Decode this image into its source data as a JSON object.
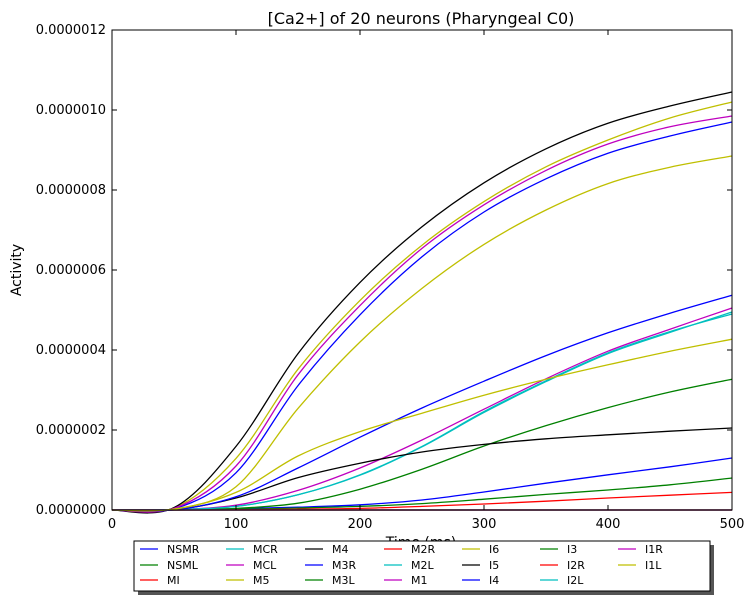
{
  "chart_data": {
    "type": "line",
    "title": "[Ca2+] of 20 neurons (Pharyngeal C0)",
    "xlabel": "Time (ms)",
    "ylabel": "Activity",
    "xlim": [
      0,
      500
    ],
    "ylim": [
      0,
      1.2e-06
    ],
    "xticks": [
      "0",
      "100",
      "200",
      "300",
      "400",
      "500"
    ],
    "yticks": [
      "0.0000000",
      "0.0000002",
      "0.0000004",
      "0.0000006",
      "0.0000008",
      "0.0000010",
      "0.0000012"
    ],
    "grid": false,
    "legend_position": "bottom",
    "x": [
      0,
      50,
      100,
      150,
      200,
      250,
      300,
      350,
      400,
      450,
      500
    ],
    "series": [
      {
        "name": "NSMR",
        "color": "#0000ff",
        "values": [
          0,
          3e-10,
          3e-09,
          7e-09,
          1.3e-08,
          2.5e-08,
          4.5e-08,
          6.7e-08,
          8.8e-08,
          1.08e-07,
          1.3e-07
        ]
      },
      {
        "name": "NSML",
        "color": "#008000",
        "values": [
          0,
          0,
          1.5e-09,
          5e-09,
          9e-09,
          1.6e-08,
          2.7e-08,
          3.9e-08,
          5e-08,
          6.3e-08,
          8e-08
        ]
      },
      {
        "name": "MI",
        "color": "#ff0000",
        "values": [
          0,
          0,
          5e-10,
          2e-09,
          4e-09,
          9e-09,
          1.5e-08,
          2.2e-08,
          3e-08,
          3.7e-08,
          4.4e-08
        ]
      },
      {
        "name": "MCR",
        "color": "#00bfbf",
        "values": [
          0,
          1e-09,
          9e-09,
          3.8e-08,
          8.8e-08,
          1.59e-07,
          2.46e-07,
          3.23e-07,
          3.93e-07,
          4.46e-07,
          4.9e-07
        ]
      },
      {
        "name": "MCL",
        "color": "#bf00bf",
        "values": [
          0,
          1e-09,
          1.2e-08,
          4.9e-08,
          1.05e-07,
          1.75e-07,
          2.52e-07,
          3.28e-07,
          3.97e-07,
          4.52e-07,
          5.05e-07
        ]
      },
      {
        "name": "M5",
        "color": "#bfbf00",
        "values": [
          0,
          5e-09,
          1.29e-07,
          3.52e-07,
          5.24e-07,
          6.62e-07,
          7.71e-07,
          8.58e-07,
          9.25e-07,
          9.8e-07,
          1.02e-06
        ]
      },
      {
        "name": "M4",
        "color": "#000000",
        "values": [
          0,
          6e-09,
          1.59e-07,
          3.91e-07,
          5.69e-07,
          7.08e-07,
          8.18e-07,
          9.03e-07,
          9.67e-07,
          1.01e-06,
          1.045e-06
        ]
      },
      {
        "name": "M3R",
        "color": "#0000ff",
        "values": [
          0,
          3e-09,
          9.3e-08,
          3.11e-07,
          4.88e-07,
          6.33e-07,
          7.45e-07,
          8.28e-07,
          8.92e-07,
          9.35e-07,
          9.7e-07
        ]
      },
      {
        "name": "M3L",
        "color": "#008000",
        "values": [
          0,
          0,
          4e-09,
          1.7e-08,
          5.2e-08,
          1.02e-07,
          1.6e-07,
          2.11e-07,
          2.56e-07,
          2.95e-07,
          3.27e-07
        ]
      },
      {
        "name": "M2R",
        "color": "#ff0000",
        "values": [
          0,
          0,
          0,
          0,
          0,
          0,
          0,
          0,
          0,
          0,
          0
        ]
      },
      {
        "name": "M2L",
        "color": "#00bfbf",
        "values": [
          0,
          1e-09,
          9e-09,
          3.8e-08,
          8.7e-08,
          1.58e-07,
          2.44e-07,
          3.21e-07,
          3.91e-07,
          4.44e-07,
          4.95e-07
        ]
      },
      {
        "name": "M1",
        "color": "#bf00bf",
        "values": [
          0,
          4e-09,
          1.1e-07,
          3.38e-07,
          5.11e-07,
          6.54e-07,
          7.63e-07,
          8.49e-07,
          9.15e-07,
          9.58e-07,
          9.85e-07
        ]
      },
      {
        "name": "I6",
        "color": "#bfbf00",
        "values": [
          0,
          2e-09,
          5.8e-08,
          2.54e-07,
          4.2e-07,
          5.54e-07,
          6.64e-07,
          7.5e-07,
          8.16e-07,
          8.57e-07,
          8.85e-07
        ]
      },
      {
        "name": "I5",
        "color": "#000000",
        "values": [
          0,
          5e-10,
          3e-08,
          8.1e-08,
          1.17e-07,
          1.45e-07,
          1.64e-07,
          1.78e-07,
          1.88e-07,
          1.97e-07,
          2.05e-07
        ]
      },
      {
        "name": "I4",
        "color": "#0000ff",
        "values": [
          0,
          5e-10,
          3.3e-08,
          1.05e-07,
          1.82e-07,
          2.55e-07,
          3.22e-07,
          3.86e-07,
          4.43e-07,
          4.92e-07,
          5.37e-07
        ]
      },
      {
        "name": "I3",
        "color": "#008000",
        "values": [
          0,
          0,
          0,
          0,
          0,
          0,
          0,
          0,
          0,
          0,
          0
        ]
      },
      {
        "name": "I2R",
        "color": "#ff0000",
        "values": [
          0,
          0,
          0,
          0,
          0,
          0,
          0,
          0,
          0,
          0,
          0
        ]
      },
      {
        "name": "I2L",
        "color": "#00bfbf",
        "values": [
          0,
          0,
          0,
          0,
          0,
          0,
          0,
          0,
          0,
          0,
          0
        ]
      },
      {
        "name": "I1R",
        "color": "#bf00bf",
        "values": [
          0,
          0,
          0,
          0,
          0,
          0,
          0,
          0,
          0,
          0,
          0
        ]
      },
      {
        "name": "I1L",
        "color": "#bfbf00",
        "values": [
          0,
          2e-09,
          4.4e-08,
          1.35e-07,
          1.96e-07,
          2.42e-07,
          2.87e-07,
          3.27e-07,
          3.63e-07,
          3.97e-07,
          4.27e-07
        ]
      }
    ]
  }
}
